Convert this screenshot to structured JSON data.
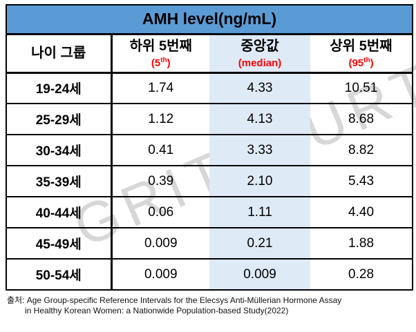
{
  "colors": {
    "header_blue": "#5b9bd5",
    "median_band_blue": "#deeaf6",
    "accent_red": "#ff0000",
    "border_black": "#000000",
    "watermark_gray": "#d7d7d7"
  },
  "watermark": {
    "left": "GRITY",
    "right": "URT"
  },
  "table": {
    "title": "AMH level(ng/mL)",
    "columns": [
      {
        "label": "나이 그룹",
        "sub_open": "",
        "sub_sup": "",
        "sub_close": ""
      },
      {
        "label": "하위 5번째",
        "sub_open": "(5",
        "sub_sup": "th",
        "sub_close": ")"
      },
      {
        "label": "중앙값",
        "sub_open": "(median)",
        "sub_sup": "",
        "sub_close": ""
      },
      {
        "label": "상위 5번째",
        "sub_open": "(95",
        "sub_sup": "th",
        "sub_close": ")"
      }
    ],
    "rows": [
      {
        "age": "19-24세",
        "p5": "1.74",
        "median": "4.33",
        "p95": "10.51"
      },
      {
        "age": "25-29세",
        "p5": "1.12",
        "median": "4.13",
        "p95": "8.68"
      },
      {
        "age": "30-34세",
        "p5": "0.41",
        "median": "3.33",
        "p95": "8.82"
      },
      {
        "age": "35-39세",
        "p5": "0.39",
        "median": "2.10",
        "p95": "5.43"
      },
      {
        "age": "40-44세",
        "p5": "0.06",
        "median": "1.11",
        "p95": "4.40"
      },
      {
        "age": "45-49세",
        "p5": "0.009",
        "median": "0.21",
        "p95": "1.88"
      },
      {
        "age": "50-54세",
        "p5": "0.009",
        "median": "0.009",
        "p95": "0.28"
      }
    ]
  },
  "footer": {
    "line1": "출처: Age Group-specific Reference Intervals for the Elecsys Anti-Müllerian Hormone Assay",
    "line2": "in Healthy Korean Women: a Nationwide Population-based Study(2022)"
  },
  "chart_data": {
    "type": "table",
    "title": "AMH level(ng/mL)",
    "categories": [
      "19-24세",
      "25-29세",
      "30-34세",
      "35-39세",
      "40-44세",
      "45-49세",
      "50-54세"
    ],
    "series": [
      {
        "name": "하위 5번째 (5th)",
        "values": [
          1.74,
          1.12,
          0.41,
          0.39,
          0.06,
          0.009,
          0.009
        ]
      },
      {
        "name": "중앙값 (median)",
        "values": [
          4.33,
          4.13,
          3.33,
          2.1,
          1.11,
          0.21,
          0.009
        ]
      },
      {
        "name": "상위 5번째 (95th)",
        "values": [
          10.51,
          8.68,
          8.82,
          5.43,
          4.4,
          1.88,
          0.28
        ]
      }
    ],
    "row_header_label": "나이 그룹",
    "source": "출처: Age Group-specific Reference Intervals for the Elecsys Anti-Müllerian Hormone Assay in Healthy Korean Women: a Nationwide Population-based Study(2022)"
  }
}
